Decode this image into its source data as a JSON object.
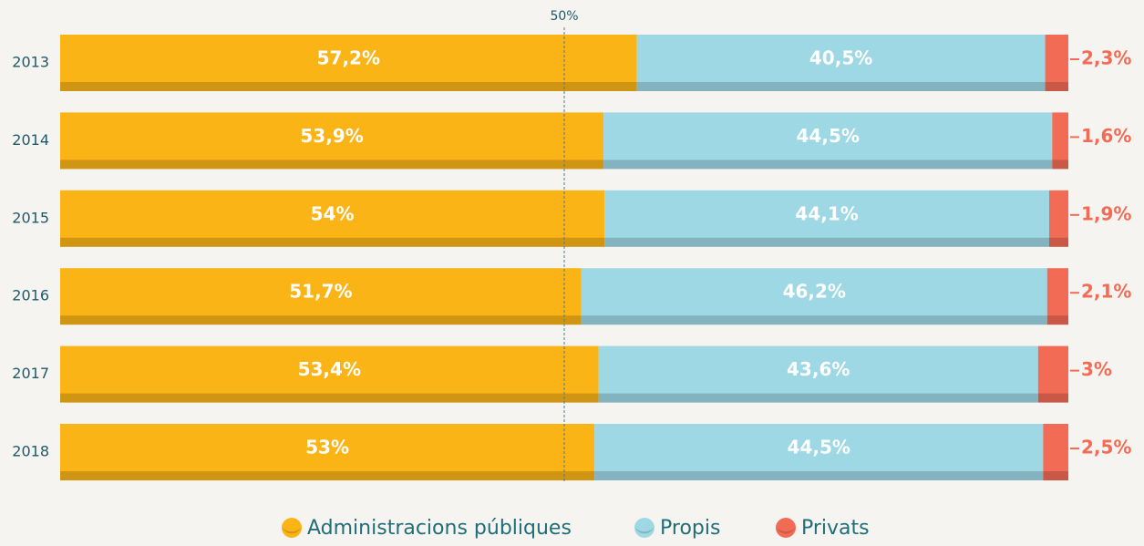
{
  "chart_data": {
    "type": "stacked_barh",
    "categories": [
      "2013",
      "2014",
      "2015",
      "2016",
      "2017",
      "2018"
    ],
    "series": [
      {
        "name": "Administracions públiques",
        "color": "#fbb416",
        "values": [
          57.2,
          53.9,
          54,
          51.7,
          53.4,
          53
        ],
        "value_labels": [
          "57,2%",
          "53,9%",
          "54%",
          "51,7%",
          "53,4%",
          "53%"
        ]
      },
      {
        "name": "Propis",
        "color": "#9ed8e5",
        "values": [
          40.5,
          44.5,
          44.1,
          46.2,
          43.6,
          44.5
        ],
        "value_labels": [
          "40,5%",
          "44,5%",
          "44,1%",
          "46,2%",
          "43,6%",
          "44,5%"
        ]
      },
      {
        "name": "Privats",
        "color": "#f26c55",
        "values": [
          2.3,
          1.6,
          1.9,
          2.1,
          3,
          2.5
        ],
        "value_labels": [
          "2,3%",
          "1,6%",
          "1,9%",
          "2,1%",
          "3%",
          "2,5%"
        ]
      }
    ],
    "xlim": [
      0,
      100
    ],
    "xticks": [
      {
        "value": 50,
        "label": "50%"
      }
    ],
    "legend": "bottom"
  }
}
